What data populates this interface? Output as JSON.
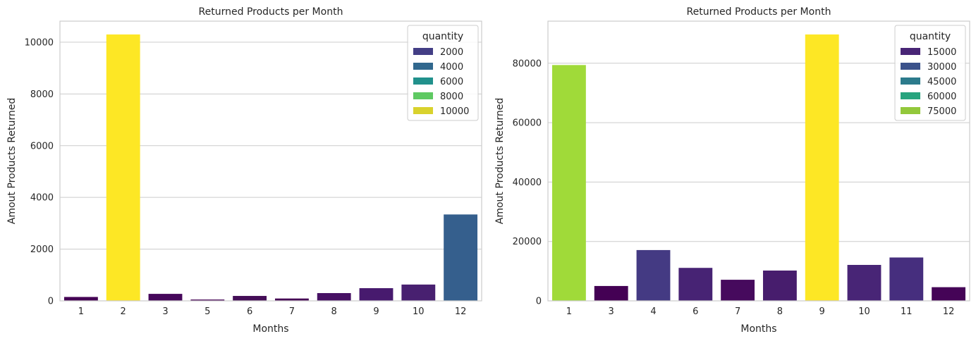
{
  "chart_data": [
    {
      "type": "bar",
      "title": "Returned Products per Month",
      "xlabel": "Months",
      "ylabel": "Amout Products Returned",
      "categories": [
        "1",
        "2",
        "3",
        "5",
        "6",
        "7",
        "8",
        "9",
        "10",
        "12"
      ],
      "values": [
        150,
        10300,
        270,
        50,
        190,
        90,
        300,
        490,
        630,
        3340
      ],
      "colors": [
        "#440154",
        "#fde725",
        "#46085b",
        "#440154",
        "#440e57",
        "#440154",
        "#471164",
        "#471a6e",
        "#482070",
        "#355f8d"
      ],
      "ylim": [
        0,
        10815
      ],
      "yticks": [
        0,
        2000,
        4000,
        6000,
        8000,
        10000
      ],
      "grid": true,
      "legend": {
        "title": "quantity",
        "placement": "top-right",
        "items": [
          {
            "label": "2000",
            "color": "#433e85"
          },
          {
            "label": "4000",
            "color": "#31688e"
          },
          {
            "label": "6000",
            "color": "#21918c"
          },
          {
            "label": "8000",
            "color": "#5ec962"
          },
          {
            "label": "10000",
            "color": "#d9d22d"
          }
        ]
      }
    },
    {
      "type": "bar",
      "title": "Returned Products per Month",
      "xlabel": "Months",
      "ylabel": "Amout Products Returned",
      "categories": [
        "1",
        "3",
        "4",
        "6",
        "7",
        "8",
        "9",
        "10",
        "11",
        "12"
      ],
      "values": [
        79400,
        5000,
        17100,
        11100,
        7100,
        10200,
        89700,
        12100,
        14600,
        4600
      ],
      "colors": [
        "#a0da39",
        "#440154",
        "#443a83",
        "#472374",
        "#460a5d",
        "#471d6d",
        "#fde725",
        "#482576",
        "#462e7e",
        "#450457"
      ],
      "ylim": [
        0,
        94185
      ],
      "yticks": [
        0,
        20000,
        40000,
        60000,
        80000
      ],
      "grid": true,
      "legend": {
        "title": "quantity",
        "placement": "top-right",
        "items": [
          {
            "label": "15000",
            "color": "#482576"
          },
          {
            "label": "30000",
            "color": "#3b528b"
          },
          {
            "label": "45000",
            "color": "#2c7b8c"
          },
          {
            "label": "60000",
            "color": "#27a47e"
          },
          {
            "label": "75000",
            "color": "#93c83b"
          }
        ]
      }
    }
  ]
}
